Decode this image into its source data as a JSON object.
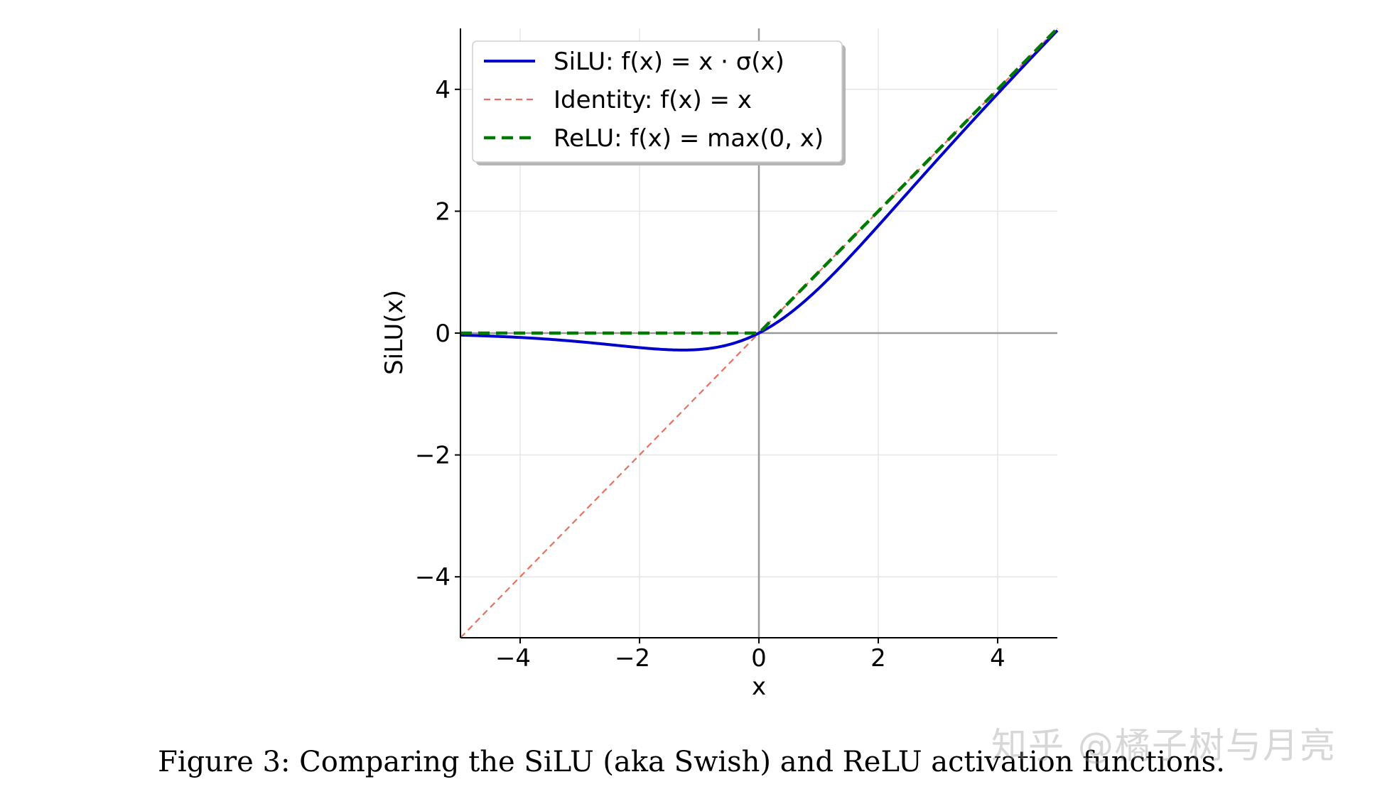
{
  "chart_data": {
    "type": "line",
    "title": "",
    "xlabel": "x",
    "ylabel": "SiLU(x)",
    "xlim": [
      -5,
      5
    ],
    "ylim": [
      -5,
      5
    ],
    "xticks": [
      -4,
      -2,
      0,
      2,
      4
    ],
    "yticks": [
      -4,
      -2,
      0,
      2,
      4
    ],
    "xtick_labels": [
      "−4",
      "−2",
      "0",
      "2",
      "4"
    ],
    "ytick_labels": [
      "−4",
      "−2",
      "0",
      "2",
      "4"
    ],
    "grid": true,
    "legend_position": "top-left",
    "series": [
      {
        "name": "SiLU",
        "label": "SiLU: f(x) = x · σ(x)",
        "function": "x*sigmoid(x)",
        "color": "#0000cc",
        "style": "solid",
        "x": [
          -5,
          -4,
          -3,
          -2,
          -1.28,
          -1,
          0,
          1,
          2,
          3,
          4,
          5
        ],
        "values": [
          -0.033,
          -0.072,
          -0.142,
          -0.238,
          -0.278,
          -0.269,
          0,
          0.731,
          1.762,
          2.858,
          3.928,
          4.967
        ]
      },
      {
        "name": "Identity",
        "label": "Identity: f(x) = x",
        "function": "x",
        "color": "#e8705f",
        "style": "dashed-thin",
        "x": [
          -5,
          5
        ],
        "values": [
          -5,
          5
        ]
      },
      {
        "name": "ReLU",
        "label": "ReLU: f(x) = max(0, x)",
        "function": "max(0,x)",
        "color": "#007a00",
        "style": "dashed-thick",
        "x": [
          -5,
          0,
          5
        ],
        "values": [
          0,
          0,
          5
        ]
      }
    ]
  },
  "caption": "Figure 3: Comparing the SiLU (aka Swish) and ReLU activation functions.",
  "watermark": "知乎 @橘子树与月亮"
}
